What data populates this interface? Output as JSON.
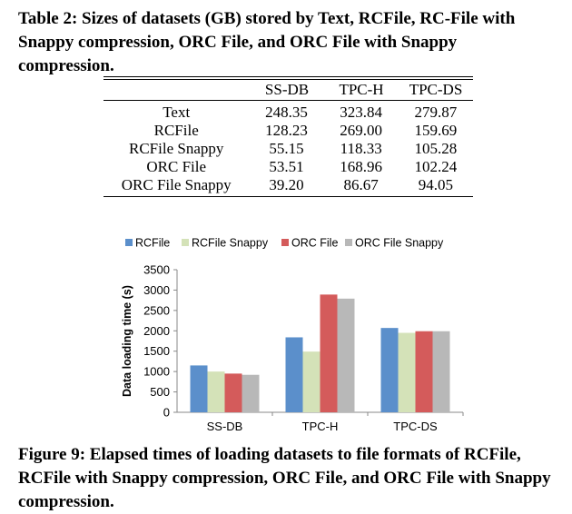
{
  "table_caption": "Table 2: Sizes of datasets (GB) stored by Text, RCFile, RC-File with Snappy compression, ORC File, and ORC File with Snappy compression.",
  "table": {
    "columns": [
      "",
      "SS-DB",
      "TPC-H",
      "TPC-DS"
    ],
    "rows": [
      [
        "Text",
        "248.35",
        "323.84",
        "279.87"
      ],
      [
        "RCFile",
        "128.23",
        "269.00",
        "159.69"
      ],
      [
        "RCFile Snappy",
        "55.15",
        "118.33",
        "105.28"
      ],
      [
        "ORC File",
        "53.51",
        "168.96",
        "102.24"
      ],
      [
        "ORC File Snappy",
        "39.20",
        "86.67",
        "94.05"
      ]
    ]
  },
  "chart_data": {
    "type": "bar",
    "categories": [
      "SS-DB",
      "TPC-H",
      "TPC-DS"
    ],
    "series": [
      {
        "name": "RCFile",
        "color": "#5b8fcb",
        "values": [
          1150,
          1840,
          2070
        ]
      },
      {
        "name": "RCFile Snappy",
        "color": "#d4e2b8",
        "values": [
          1000,
          1490,
          1950
        ]
      },
      {
        "name": "ORC File",
        "color": "#d45b5b",
        "values": [
          950,
          2890,
          1990
        ]
      },
      {
        "name": "ORC File Snappy",
        "color": "#b8b8b8",
        "values": [
          920,
          2790,
          1990
        ]
      }
    ],
    "ylabel": "Data loading time (s)",
    "xlabel": "",
    "ylim": [
      0,
      3500
    ],
    "yticks": [
      0,
      500,
      1000,
      1500,
      2000,
      2500,
      3000,
      3500
    ],
    "legend_position": "top",
    "grid": false
  },
  "figure_caption": "Figure 9: Elapsed times of loading datasets to file formats of RCFile, RCFile with Snappy compression, ORC File, and ORC File with Snappy compression."
}
